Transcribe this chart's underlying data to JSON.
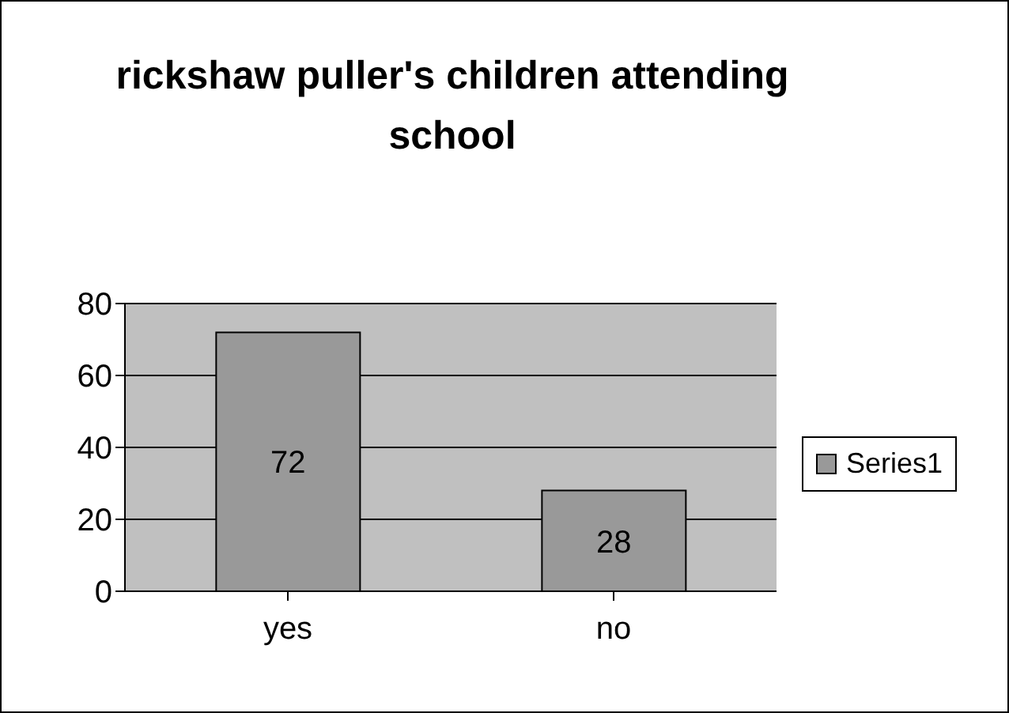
{
  "chart_data": {
    "type": "bar",
    "title": "rickshaw puller's children attending school",
    "categories": [
      "yes",
      "no"
    ],
    "series": [
      {
        "name": "Series1",
        "color": "#999999",
        "values": [
          72,
          28
        ]
      }
    ],
    "ylim": [
      0,
      80
    ],
    "yticks": [
      0,
      20,
      40,
      60,
      80
    ],
    "grid": "y",
    "legend": "right",
    "data_labels": true
  }
}
